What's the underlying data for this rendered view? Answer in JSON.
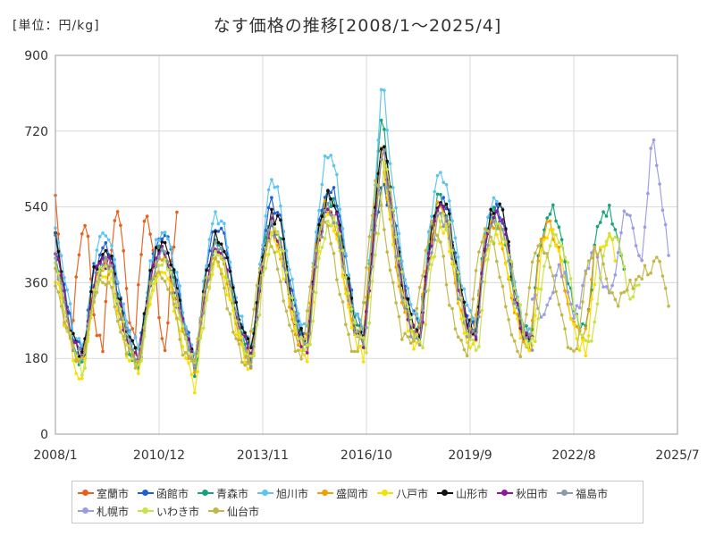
{
  "header": {
    "unit": "[単位：円/kg]",
    "title": "なす価格の推移[2008/1〜2025/4]"
  },
  "chart_data": {
    "type": "line",
    "title": "なす価格の推移[2008/1〜2025/4]",
    "unit": "[単位：円/kg]",
    "xlabel": "",
    "ylabel": "",
    "ylim": [
      0,
      900
    ],
    "yticks": [
      0,
      180,
      360,
      540,
      720,
      900
    ],
    "xlim": [
      "2008-01",
      "2025-07"
    ],
    "xticks": [
      "2008/1",
      "2010/12",
      "2013/11",
      "2016/10",
      "2019/9",
      "2022/8",
      "2025/7"
    ],
    "grid": true,
    "legend_position": "bottom",
    "series": [
      {
        "name": "室蘭市",
        "color": "#e8601c",
        "start": "2008-01",
        "end": "2011-06",
        "ref": [
          575,
          380,
          230,
          210,
          390,
          490,
          480,
          320,
          230,
          200,
          380,
          480,
          520,
          430,
          280,
          200,
          400,
          520,
          480,
          380,
          230,
          210,
          420,
          520
        ]
      },
      {
        "name": "函館市",
        "color": "#1f5fd6",
        "start": "2008-01",
        "end": "2021-06",
        "ref": [
          480,
          340,
          230,
          180,
          380,
          450,
          420,
          310,
          220,
          190,
          360,
          470,
          460,
          360,
          240,
          170,
          370,
          490,
          470,
          340,
          250,
          180,
          400,
          560,
          520,
          380,
          250,
          240,
          500,
          600,
          570,
          420,
          290,
          230,
          490,
          580,
          540,
          400,
          280,
          260,
          460,
          560,
          540,
          380,
          270,
          250,
          480,
          540,
          500,
          360,
          250,
          230
        ]
      },
      {
        "name": "青森市",
        "color": "#16a37a",
        "start": "2008-01",
        "end": "2024-01",
        "ref": [
          420,
          320,
          200,
          160,
          350,
          420,
          400,
          300,
          200,
          170,
          340,
          430,
          420,
          330,
          230,
          150,
          330,
          450,
          430,
          320,
          230,
          170,
          380,
          520,
          480,
          360,
          240,
          220,
          460,
          560,
          560,
          400,
          270,
          220,
          470,
          760,
          560,
          380,
          270,
          240,
          440,
          570,
          520,
          380,
          260,
          240,
          470,
          530,
          490,
          350,
          250,
          230,
          460,
          540,
          500,
          360,
          260,
          250,
          470,
          540,
          510,
          380
        ]
      },
      {
        "name": "旭川市",
        "color": "#5cc4ee",
        "start": "2008-01",
        "end": "2021-06",
        "ref": [
          500,
          360,
          240,
          200,
          390,
          470,
          440,
          320,
          240,
          200,
          380,
          480,
          470,
          370,
          250,
          170,
          380,
          520,
          500,
          360,
          260,
          200,
          420,
          620,
          560,
          400,
          270,
          240,
          520,
          680,
          620,
          440,
          300,
          250,
          520,
          860,
          600,
          420,
          290,
          270,
          500,
          640,
          580,
          420,
          290,
          270,
          500,
          560,
          520,
          370,
          260,
          240
        ]
      },
      {
        "name": "盛岡市",
        "color": "#f0a000",
        "start": "2008-01",
        "end": "2023-03",
        "ref": [
          400,
          300,
          200,
          170,
          340,
          410,
          380,
          280,
          200,
          170,
          330,
          420,
          400,
          310,
          220,
          160,
          320,
          430,
          420,
          310,
          220,
          170,
          370,
          500,
          460,
          340,
          230,
          210,
          440,
          540,
          520,
          380,
          260,
          210,
          440,
          700,
          520,
          360,
          260,
          230,
          420,
          540,
          500,
          360,
          250,
          230,
          440,
          510,
          470,
          340,
          240,
          220,
          430,
          500,
          460,
          330,
          250,
          240,
          440
        ]
      },
      {
        "name": "八戸市",
        "color": "#f5e000",
        "start": "2008-01",
        "end": "2023-10",
        "ref": [
          380,
          270,
          170,
          130,
          320,
          390,
          360,
          250,
          170,
          150,
          300,
          400,
          380,
          280,
          190,
          110,
          300,
          420,
          400,
          280,
          200,
          150,
          350,
          480,
          440,
          320,
          210,
          180,
          420,
          520,
          500,
          360,
          240,
          180,
          420,
          660,
          500,
          340,
          230,
          200,
          400,
          520,
          480,
          340,
          230,
          200,
          420,
          500,
          450,
          320,
          220,
          200,
          420,
          490,
          450,
          310,
          220,
          200,
          420,
          470,
          430
        ]
      },
      {
        "name": "山形市",
        "color": "#111111",
        "start": "2008-01",
        "end": "2021-06",
        "ref": [
          460,
          330,
          210,
          190,
          370,
          440,
          410,
          300,
          210,
          180,
          360,
          450,
          440,
          340,
          230,
          170,
          360,
          480,
          460,
          340,
          240,
          190,
          400,
          520,
          500,
          360,
          240,
          220,
          470,
          560,
          550,
          400,
          270,
          220,
          470,
          720,
          540,
          380,
          270,
          240,
          450,
          560,
          530,
          380,
          260,
          240,
          470,
          550,
          510,
          360,
          240,
          220
        ]
      },
      {
        "name": "秋田市",
        "color": "#8a1a9b",
        "start": "2008-01",
        "end": "2021-06",
        "ref": [
          430,
          320,
          210,
          180,
          350,
          420,
          400,
          290,
          210,
          180,
          340,
          440,
          420,
          320,
          230,
          170,
          340,
          460,
          440,
          320,
          230,
          180,
          380,
          500,
          470,
          340,
          230,
          210,
          450,
          540,
          530,
          380,
          260,
          210,
          450,
          700,
          520,
          360,
          260,
          230,
          430,
          540,
          500,
          360,
          250,
          230,
          450,
          520,
          490,
          350,
          240,
          220
        ]
      },
      {
        "name": "福島市",
        "color": "#8a9aa8",
        "start": "2008-01",
        "end": "2021-06",
        "ref": [
          420,
          310,
          200,
          170,
          340,
          410,
          390,
          290,
          200,
          170,
          330,
          430,
          410,
          320,
          220,
          160,
          330,
          450,
          430,
          310,
          220,
          170,
          370,
          490,
          460,
          340,
          230,
          200,
          440,
          530,
          520,
          370,
          250,
          210,
          440,
          690,
          510,
          350,
          250,
          220,
          420,
          530,
          490,
          350,
          240,
          220,
          440,
          510,
          480,
          340,
          240,
          210
        ]
      },
      {
        "name": "札幌市",
        "color": "#9b9be6",
        "start": "2021-06",
        "end": "2025-04",
        "ref": [
          340,
          300,
          280,
          320,
          360,
          400,
          380,
          300,
          280,
          320,
          400,
          440,
          420,
          360,
          320,
          380,
          460,
          520,
          500,
          440,
          400,
          560,
          720,
          600,
          540,
          420
        ]
      },
      {
        "name": "いわき市",
        "color": "#c8e24a",
        "start": "2008-01",
        "end": "2024-06",
        "ref": [
          400,
          290,
          190,
          150,
          330,
          400,
          370,
          270,
          190,
          160,
          320,
          410,
          390,
          300,
          200,
          150,
          310,
          430,
          410,
          300,
          210,
          160,
          360,
          480,
          450,
          330,
          220,
          190,
          420,
          520,
          500,
          360,
          240,
          200,
          420,
          650,
          500,
          340,
          240,
          210,
          400,
          520,
          480,
          340,
          230,
          210,
          420,
          500,
          460,
          330,
          230,
          210,
          410,
          490,
          450,
          320,
          230,
          210,
          410,
          470,
          440,
          320,
          360
        ]
      },
      {
        "name": "仙台市",
        "color": "#c2b84a",
        "start": "2008-01",
        "end": "2025-04",
        "ref": [
          370,
          280,
          190,
          160,
          320,
          380,
          360,
          260,
          190,
          160,
          310,
          390,
          380,
          290,
          200,
          150,
          300,
          410,
          390,
          290,
          200,
          160,
          340,
          460,
          430,
          320,
          220,
          180,
          400,
          500,
          480,
          340,
          230,
          190,
          400,
          620,
          480,
          330,
          230,
          200,
          380,
          500,
          460,
          330,
          220,
          200,
          400,
          480,
          440,
          320,
          220,
          200,
          390,
          460,
          420,
          310,
          220,
          200,
          380,
          440,
          410,
          300,
          330,
          360,
          380,
          400,
          420,
          310
        ]
      }
    ]
  }
}
